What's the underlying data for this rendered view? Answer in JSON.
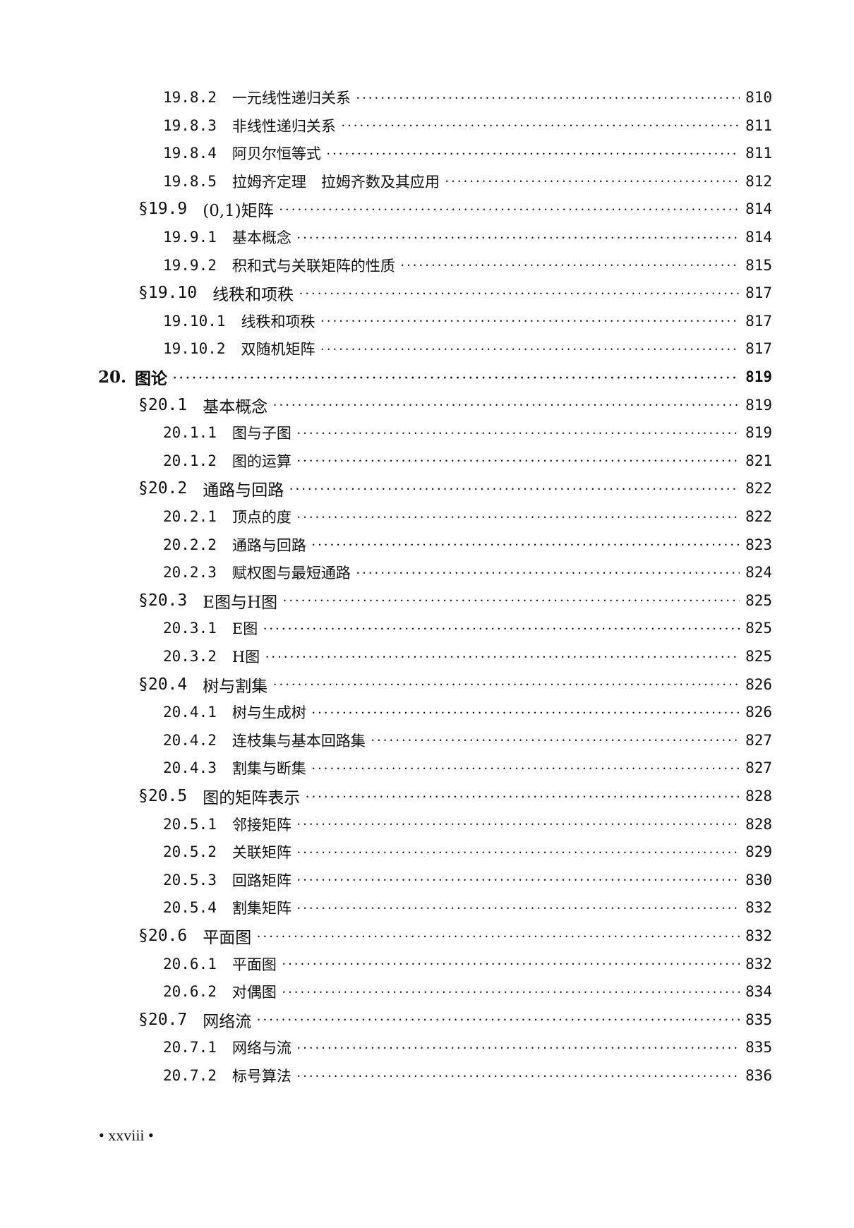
{
  "entries": [
    {
      "level": 2,
      "num": "19.8.2",
      "title": "一元线性递归关系",
      "page": "810"
    },
    {
      "level": 2,
      "num": "19.8.3",
      "title": "非线性递归关系",
      "page": "811"
    },
    {
      "level": 2,
      "num": "19.8.4",
      "title": "阿贝尔恒等式",
      "page": "811"
    },
    {
      "level": 2,
      "num": "19.8.5",
      "title": "拉姆齐定理　拉姆齐数及其应用",
      "page": "812"
    },
    {
      "level": 1,
      "num": "§19.9",
      "title": "(0,1)矩阵",
      "page": "814"
    },
    {
      "level": 2,
      "num": "19.9.1",
      "title": "基本概念",
      "page": "814"
    },
    {
      "level": 2,
      "num": "19.9.2",
      "title": "积和式与关联矩阵的性质",
      "page": "815"
    },
    {
      "level": 1,
      "num": "§19.10",
      "title": "线秩和项秩",
      "page": "817"
    },
    {
      "level": 2,
      "num": "19.10.1",
      "title": "线秩和项秩",
      "page": "817"
    },
    {
      "level": 2,
      "num": "19.10.2",
      "title": "双随机矩阵",
      "page": "817"
    },
    {
      "level": 0,
      "num": "20.",
      "title": "图论",
      "page": "819"
    },
    {
      "level": 1,
      "num": "§20.1",
      "title": "基本概念",
      "page": "819"
    },
    {
      "level": 2,
      "num": "20.1.1",
      "title": "图与子图",
      "page": "819"
    },
    {
      "level": 2,
      "num": "20.1.2",
      "title": "图的运算",
      "page": "821"
    },
    {
      "level": 1,
      "num": "§20.2",
      "title": "通路与回路",
      "page": "822"
    },
    {
      "level": 2,
      "num": "20.2.1",
      "title": "顶点的度",
      "page": "822"
    },
    {
      "level": 2,
      "num": "20.2.2",
      "title": "通路与回路",
      "page": "823"
    },
    {
      "level": 2,
      "num": "20.2.3",
      "title": "赋权图与最短通路",
      "page": "824"
    },
    {
      "level": 1,
      "num": "§20.3",
      "title": "E图与H图",
      "page": "825"
    },
    {
      "level": 2,
      "num": "20.3.1",
      "title": "E图",
      "page": "825"
    },
    {
      "level": 2,
      "num": "20.3.2",
      "title": "H图",
      "page": "825"
    },
    {
      "level": 1,
      "num": "§20.4",
      "title": "树与割集",
      "page": "826"
    },
    {
      "level": 2,
      "num": "20.4.1",
      "title": "树与生成树",
      "page": "826"
    },
    {
      "level": 2,
      "num": "20.4.2",
      "title": "连枝集与基本回路集",
      "page": "827"
    },
    {
      "level": 2,
      "num": "20.4.3",
      "title": "割集与断集",
      "page": "827"
    },
    {
      "level": 1,
      "num": "§20.5",
      "title": "图的矩阵表示",
      "page": "828"
    },
    {
      "level": 2,
      "num": "20.5.1",
      "title": "邻接矩阵",
      "page": "828"
    },
    {
      "level": 2,
      "num": "20.5.2",
      "title": "关联矩阵",
      "page": "829"
    },
    {
      "level": 2,
      "num": "20.5.3",
      "title": "回路矩阵",
      "page": "830"
    },
    {
      "level": 2,
      "num": "20.5.4",
      "title": "割集矩阵",
      "page": "832"
    },
    {
      "level": 1,
      "num": "§20.6",
      "title": "平面图",
      "page": "832"
    },
    {
      "level": 2,
      "num": "20.6.1",
      "title": "平面图",
      "page": "832"
    },
    {
      "level": 2,
      "num": "20.6.2",
      "title": "对偶图",
      "page": "834"
    },
    {
      "level": 1,
      "num": "§20.7",
      "title": "网络流",
      "page": "835"
    },
    {
      "level": 2,
      "num": "20.7.1",
      "title": "网络与流",
      "page": "835"
    },
    {
      "level": 2,
      "num": "20.7.2",
      "title": "标号算法",
      "page": "836"
    }
  ],
  "footer": {
    "page_label": "• xxviii •"
  }
}
